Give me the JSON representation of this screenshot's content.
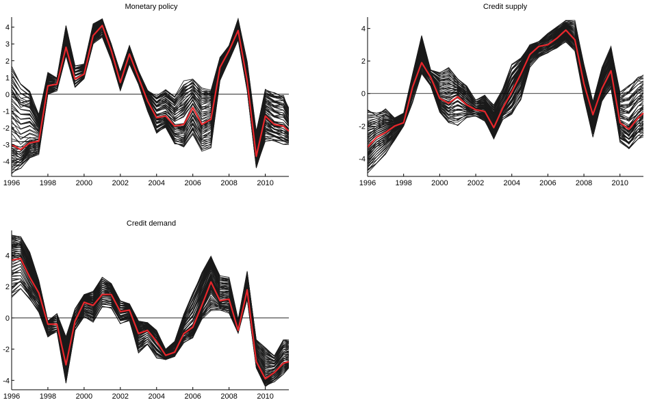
{
  "chart_data": [
    {
      "type": "line",
      "title": "Monetary policy",
      "xlabel": "",
      "ylabel": "",
      "xlim": [
        1996,
        2011.3
      ],
      "ylim": [
        -4.9,
        4.6
      ],
      "xticks": [
        "1996",
        "1998",
        "2000",
        "2002",
        "2004",
        "2006",
        "2008",
        "2010"
      ],
      "yticks": [
        "-4",
        "-3",
        "-2",
        "-1",
        "0",
        "1",
        "2",
        "3",
        "4"
      ],
      "zero_line": true,
      "band_color": "#1a1a1a",
      "median_color": "#e8262b",
      "x": [
        1996,
        1996.5,
        1997,
        1997.5,
        1998,
        1998.5,
        1999,
        1999.5,
        2000,
        2000.5,
        2001,
        2001.5,
        2002,
        2002.5,
        2003,
        2003.5,
        2004,
        2004.5,
        2005,
        2005.5,
        2006,
        2006.5,
        2007,
        2007.5,
        2008,
        2008.5,
        2009,
        2009.5,
        2010,
        2010.5,
        2011,
        2011.3
      ],
      "series": [
        {
          "role": "median",
          "values": [
            -3.0,
            -3.3,
            -2.9,
            -2.8,
            0.5,
            0.6,
            2.8,
            0.9,
            1.2,
            3.5,
            4.1,
            2.6,
            0.7,
            2.4,
            1.0,
            -0.4,
            -1.4,
            -1.3,
            -1.9,
            -1.8,
            -0.8,
            -1.8,
            -1.5,
            1.6,
            2.6,
            3.8,
            0.8,
            -3.7,
            -1.3,
            -1.8,
            -1.9,
            -2.2
          ]
        },
        {
          "role": "lower",
          "values": [
            -4.8,
            -4.5,
            -3.8,
            -3.6,
            0.0,
            0.2,
            2.3,
            0.4,
            0.9,
            3.0,
            3.4,
            2.0,
            0.2,
            1.8,
            0.6,
            -1.0,
            -2.4,
            -2.0,
            -3.0,
            -3.3,
            -2.4,
            -3.4,
            -3.2,
            0.8,
            2.0,
            3.2,
            0.2,
            -4.4,
            -2.8,
            -2.8,
            -3.0,
            -3.0
          ]
        },
        {
          "role": "upper",
          "values": [
            1.7,
            0.8,
            0.4,
            -1.2,
            1.3,
            1.0,
            4.1,
            1.7,
            1.8,
            4.2,
            4.5,
            3.0,
            1.3,
            2.9,
            1.4,
            0.3,
            -0.1,
            0.3,
            -0.1,
            0.8,
            0.9,
            0.4,
            0.3,
            2.2,
            2.9,
            4.5,
            2.0,
            -2.2,
            0.3,
            0.1,
            0.0,
            -0.8
          ]
        }
      ]
    },
    {
      "type": "line",
      "title": "Credit supply",
      "xlabel": "",
      "ylabel": "",
      "xlim": [
        1996,
        2011.3
      ],
      "ylim": [
        -5.1,
        4.7
      ],
      "xticks": [
        "1996",
        "1998",
        "2000",
        "2002",
        "2004",
        "2006",
        "2008",
        "2010"
      ],
      "yticks": [
        "-4",
        "-2",
        "0",
        "2",
        "4"
      ],
      "zero_line": true,
      "band_color": "#1a1a1a",
      "median_color": "#e8262b",
      "x": [
        1996,
        1996.5,
        1997,
        1997.5,
        1998,
        1998.5,
        1999,
        1999.5,
        2000,
        2000.5,
        2001,
        2001.5,
        2002,
        2002.5,
        2003,
        2003.5,
        2004,
        2004.5,
        2005,
        2005.5,
        2006,
        2006.5,
        2007,
        2007.5,
        2008,
        2008.5,
        2009,
        2009.5,
        2010,
        2010.5,
        2011,
        2011.3
      ],
      "series": [
        {
          "role": "median",
          "values": [
            -3.3,
            -2.7,
            -2.4,
            -2.0,
            -1.8,
            0.4,
            1.9,
            1.0,
            -0.3,
            -0.6,
            -0.2,
            -0.7,
            -1.0,
            -1.1,
            -2.1,
            -0.9,
            0.1,
            1.2,
            2.4,
            2.9,
            3.0,
            3.4,
            3.9,
            3.3,
            0.6,
            -1.3,
            0.3,
            1.4,
            -1.8,
            -2.2,
            -1.5,
            -1.2
          ]
        },
        {
          "role": "lower",
          "values": [
            -4.9,
            -4.3,
            -3.8,
            -2.9,
            -2.0,
            -0.6,
            1.2,
            0.4,
            -1.2,
            -1.8,
            -2.0,
            -1.5,
            -1.4,
            -1.7,
            -2.8,
            -1.6,
            -1.3,
            -0.5,
            1.6,
            2.2,
            2.5,
            2.8,
            3.1,
            2.6,
            -0.3,
            -2.8,
            -0.5,
            0.3,
            -3.0,
            -3.4,
            -2.8,
            -2.7
          ]
        },
        {
          "role": "upper",
          "values": [
            -1.0,
            -1.2,
            -0.9,
            -1.5,
            -1.2,
            1.2,
            3.6,
            1.5,
            1.3,
            1.6,
            0.9,
            0.5,
            -0.4,
            -0.1,
            -0.7,
            0.3,
            1.8,
            2.2,
            3.0,
            3.2,
            3.7,
            4.1,
            4.5,
            4.5,
            1.8,
            -0.5,
            1.6,
            2.9,
            0.1,
            0.5,
            1.1,
            1.2
          ]
        }
      ]
    },
    {
      "type": "line",
      "title": "Credit demand",
      "xlabel": "",
      "ylabel": "",
      "xlim": [
        1996,
        2011.3
      ],
      "ylim": [
        -4.6,
        5.6
      ],
      "xticks": [
        "1996",
        "1998",
        "2000",
        "2002",
        "2004",
        "2006",
        "2008",
        "2010"
      ],
      "yticks": [
        "-4",
        "-2",
        "0",
        "2",
        "4"
      ],
      "zero_line": true,
      "band_color": "#1a1a1a",
      "median_color": "#e8262b",
      "x": [
        1996,
        1996.5,
        1997,
        1997.5,
        1998,
        1998.5,
        1999,
        1999.5,
        2000,
        2000.5,
        2001,
        2001.5,
        2002,
        2002.5,
        2003,
        2003.5,
        2004,
        2004.5,
        2005,
        2005.5,
        2006,
        2006.5,
        2007,
        2007.5,
        2008,
        2008.5,
        2009,
        2009.5,
        2010,
        2010.5,
        2011,
        2011.3
      ],
      "series": [
        {
          "role": "median",
          "values": [
            3.7,
            3.8,
            2.6,
            1.6,
            -0.4,
            -0.4,
            -3.0,
            -0.2,
            1.0,
            0.8,
            1.5,
            1.5,
            0.4,
            0.5,
            -1.0,
            -0.8,
            -1.5,
            -2.4,
            -2.2,
            -1.0,
            -0.6,
            0.8,
            2.3,
            1.1,
            1.2,
            -0.8,
            1.8,
            -2.8,
            -3.9,
            -3.5,
            -2.9,
            -2.8
          ]
        },
        {
          "role": "lower",
          "values": [
            1.2,
            1.6,
            1.0,
            0.3,
            -1.3,
            -0.9,
            -4.2,
            -0.8,
            0.0,
            -0.3,
            0.7,
            0.6,
            -0.4,
            -0.2,
            -2.3,
            -1.8,
            -2.6,
            -2.7,
            -2.5,
            -1.6,
            -1.3,
            -0.1,
            0.4,
            0.5,
            0.3,
            -1.0,
            1.2,
            -3.2,
            -4.4,
            -4.1,
            -3.6,
            -3.2
          ]
        },
        {
          "role": "upper",
          "values": [
            5.3,
            5.2,
            4.2,
            2.4,
            -0.2,
            0.3,
            -1.2,
            0.6,
            1.5,
            1.7,
            2.6,
            2.2,
            1.1,
            0.9,
            -0.2,
            -0.3,
            -0.8,
            -2.0,
            -1.5,
            0.3,
            1.6,
            2.9,
            4.0,
            2.7,
            2.6,
            -0.1,
            3.0,
            -1.4,
            -1.9,
            -2.4,
            -1.4,
            -1.4
          ]
        }
      ]
    }
  ]
}
